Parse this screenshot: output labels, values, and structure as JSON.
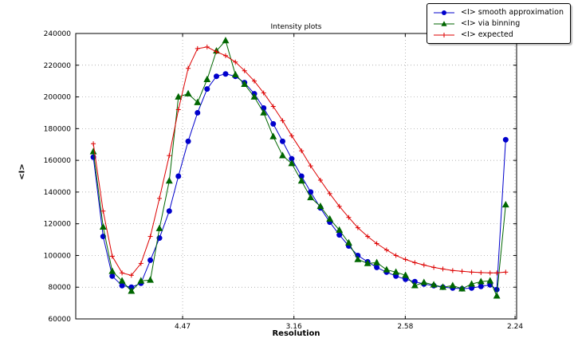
{
  "figure": {
    "background": "#ffffff",
    "plot_background": "#ffffff",
    "axis_color": "#000000",
    "grid_color": "#999999"
  },
  "chart_data": {
    "type": "line",
    "title": "Intensity plots",
    "xlabel": "Resolution",
    "ylabel": "<I>",
    "x_axis_note": "x axis linear in 1/d^2; tick labels give resolution d in Angstrom",
    "xlim": [
      0.002,
      0.2
    ],
    "ylim": [
      60000,
      240000
    ],
    "grid": true,
    "legend_position": "upper right, outside axes",
    "xticks": {
      "values": [
        0.05,
        0.1,
        0.15,
        0.1993
      ],
      "labels": [
        "4.47",
        "3.16",
        "2.58",
        "2.24"
      ]
    },
    "yticks": {
      "values": [
        60000,
        80000,
        100000,
        120000,
        140000,
        160000,
        180000,
        200000,
        220000,
        240000
      ],
      "labels": [
        "60000",
        "80000",
        "100000",
        "120000",
        "140000",
        "160000",
        "180000",
        "200000",
        "220000",
        "240000"
      ]
    },
    "x": [
      0.0099,
      0.0143,
      0.0184,
      0.0228,
      0.027,
      0.0313,
      0.0355,
      0.0396,
      0.044,
      0.0481,
      0.0525,
      0.0567,
      0.061,
      0.0652,
      0.0693,
      0.0737,
      0.0778,
      0.0822,
      0.0864,
      0.0907,
      0.0949,
      0.099,
      0.1034,
      0.1075,
      0.1119,
      0.1161,
      0.1204,
      0.1246,
      0.1287,
      0.1331,
      0.1372,
      0.1416,
      0.1458,
      0.1501,
      0.1543,
      0.1584,
      0.1628,
      0.1669,
      0.1713,
      0.1755,
      0.1798,
      0.184,
      0.1881,
      0.1911,
      0.1951
    ],
    "series": [
      {
        "name": "<I> smooth approximation",
        "color": "#0000cc",
        "marker": "circle",
        "values": [
          162000,
          112000,
          87000,
          81000,
          80000,
          82500,
          97000,
          111000,
          128000,
          150000,
          172000,
          190000,
          205000,
          213000,
          214500,
          213000,
          209000,
          202000,
          193000,
          183000,
          172000,
          161000,
          150000,
          140000,
          130000,
          121000,
          113000,
          106000,
          100000,
          96000,
          92500,
          89500,
          87000,
          85000,
          83500,
          82000,
          81000,
          80000,
          79500,
          79000,
          79500,
          80500,
          81500,
          78500,
          173000
        ]
      },
      {
        "name": "<I> via binning",
        "color": "#006600",
        "marker": "triangle",
        "values": [
          165500,
          118000,
          90000,
          84000,
          77500,
          84000,
          84500,
          117000,
          147000,
          200000,
          202000,
          196500,
          211000,
          229000,
          235500,
          214000,
          208000,
          200000,
          190000,
          175000,
          163000,
          158000,
          147000,
          136500,
          131000,
          123000,
          116000,
          108000,
          97500,
          95000,
          95500,
          91000,
          89500,
          87500,
          81000,
          83000,
          81500,
          80000,
          81000,
          79000,
          82000,
          83500,
          84000,
          74500,
          132000
        ]
      },
      {
        "name": "<I> expected",
        "color": "#dd0000",
        "marker": "plus",
        "values": [
          170500,
          128000,
          99500,
          89000,
          87500,
          95000,
          112000,
          136000,
          163000,
          192000,
          218000,
          230500,
          231500,
          228500,
          226000,
          222000,
          216500,
          210000,
          202500,
          194000,
          185000,
          175500,
          166000,
          156500,
          147500,
          139000,
          131000,
          124000,
          117500,
          112000,
          107500,
          103500,
          100000,
          97500,
          95500,
          94000,
          92500,
          91500,
          90500,
          90000,
          89500,
          89200,
          89000,
          89000,
          89500
        ]
      }
    ]
  }
}
